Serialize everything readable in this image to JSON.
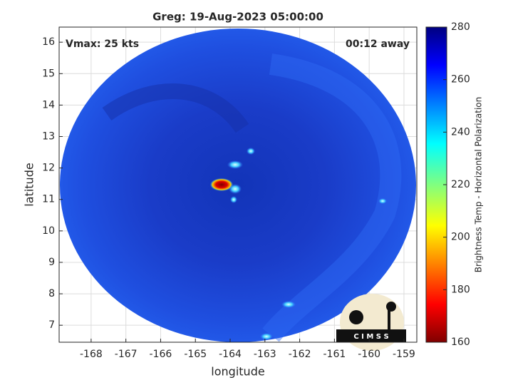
{
  "chart_data": {
    "type": "image",
    "title": "Greg: 19-Aug-2023 05:00:00",
    "annotations": {
      "left": "Vmax: 25 kts",
      "right": "00:12 away"
    },
    "xlabel": "longitude",
    "ylabel": "latitude",
    "xlim": [
      -168.92,
      -158.63
    ],
    "xticks": [
      -168,
      -167,
      -166,
      -165,
      -164,
      -163,
      -162,
      -161,
      -160,
      -159
    ],
    "ylim": [
      6.46,
      16.48
    ],
    "yticks": [
      7,
      8,
      9,
      10,
      11,
      12,
      13,
      14,
      15,
      16
    ],
    "grid": true,
    "colorbar": {
      "label": "Brightness Temp - Horizontal Polarization",
      "lim": [
        160,
        280
      ],
      "ticks": [
        160,
        180,
        200,
        220,
        240,
        260,
        280
      ]
    },
    "logo": "C I M S S"
  }
}
